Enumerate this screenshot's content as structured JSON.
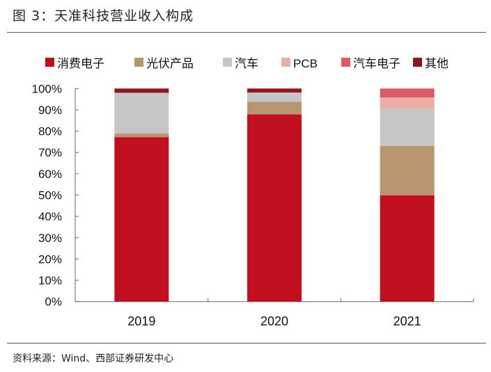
{
  "title": "图 3：天准科技营业收入构成",
  "source": "资料来源：Wind、西部证券研发中心",
  "chart_data": {
    "type": "bar",
    "stacked": true,
    "categories": [
      "2019",
      "2020",
      "2021"
    ],
    "ylim": [
      0,
      100
    ],
    "yticks": [
      "0%",
      "10%",
      "20%",
      "30%",
      "40%",
      "50%",
      "60%",
      "70%",
      "80%",
      "90%",
      "100%"
    ],
    "legend_position": "top",
    "grid": false,
    "series": [
      {
        "name": "消费电子",
        "color": "#c00f1e",
        "values": [
          77.2,
          87.9,
          49.9
        ]
      },
      {
        "name": "光伏产品",
        "color": "#b8946f",
        "values": [
          1.7,
          5.9,
          23.2
        ]
      },
      {
        "name": "汽车",
        "color": "#c6c6c6",
        "values": [
          19.1,
          4.3,
          17.5
        ]
      },
      {
        "name": "PCB",
        "color": "#ebaea4",
        "values": [
          0,
          0,
          5.2
        ]
      },
      {
        "name": "汽车电子",
        "color": "#dc5a68",
        "values": [
          0,
          0,
          4.2
        ]
      },
      {
        "name": "其他",
        "color": "#8e1620",
        "values": [
          2.0,
          1.9,
          0
        ]
      }
    ]
  }
}
